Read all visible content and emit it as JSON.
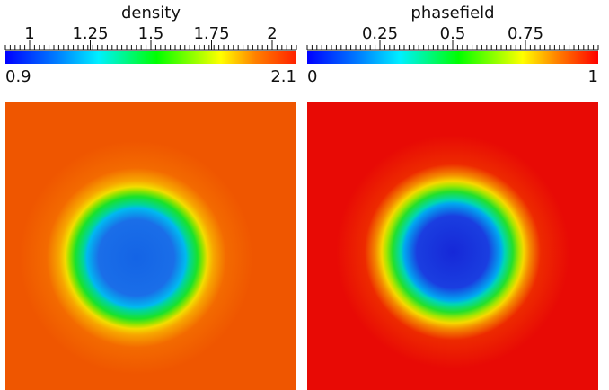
{
  "panels": [
    {
      "title": "density",
      "ticks": [
        "1",
        "1.25",
        "1.5",
        "1.75",
        "2"
      ],
      "tick_values": [
        1,
        1.25,
        1.5,
        1.75,
        2
      ],
      "range": {
        "min": "0.9",
        "max": "2.1"
      },
      "range_values": [
        0.9,
        2.1
      ],
      "colors": {
        "low": "#0000ff",
        "mid": "#00ff00",
        "high": "#ff2000",
        "background": "#ef5600",
        "core": "#1464e6"
      }
    },
    {
      "title": "phasefield",
      "ticks": [
        "0.25",
        "0.5",
        "0.75"
      ],
      "tick_values": [
        0.25,
        0.5,
        0.75
      ],
      "range": {
        "min": "0",
        "max": "1"
      },
      "range_values": [
        0,
        1
      ],
      "colors": {
        "low": "#0000ff",
        "mid": "#00ff00",
        "high": "#ff0000",
        "background": "#e80a05",
        "core": "#1628d8"
      }
    }
  ]
}
